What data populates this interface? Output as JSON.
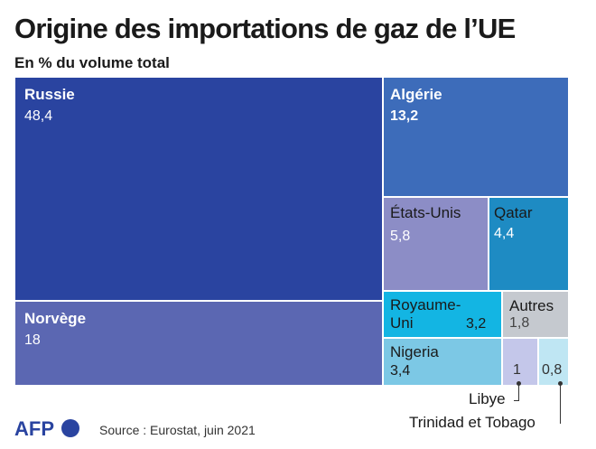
{
  "header": {
    "title": "Origine des importations de gaz de l’UE",
    "subtitle": "En % du volume total"
  },
  "chart_data": {
    "type": "treemap",
    "title": "Origine des importations de gaz de l’UE",
    "subtitle": "En % du volume total",
    "unit": "%",
    "items": [
      {
        "name": "Russie",
        "value": 48.4,
        "label": "48,4",
        "color": "#2a44a0"
      },
      {
        "name": "Norvège",
        "value": 18,
        "label": "18",
        "color": "#5b67b2"
      },
      {
        "name": "Algérie",
        "value": 13.2,
        "label": "13,2",
        "color": "#3d6cba"
      },
      {
        "name": "États-Unis",
        "value": 5.8,
        "label": "5,8",
        "color": "#8c8dc6"
      },
      {
        "name": "Qatar",
        "value": 4.4,
        "label": "4,4",
        "color": "#1e8bc3"
      },
      {
        "name": "Nigeria",
        "value": 3.4,
        "label": "3,4",
        "color": "#7cc8e5"
      },
      {
        "name": "Royaume-Uni",
        "value": 3.2,
        "label": "3,2",
        "color": "#13b5e3"
      },
      {
        "name": "Autres",
        "value": 1.8,
        "label": "1,8",
        "color": "#c5c9cf"
      },
      {
        "name": "Libye",
        "value": 1,
        "label": "1",
        "color": "#c4c7ea"
      },
      {
        "name": "Trinidad et Tobago",
        "value": 0.8,
        "label": "0,8",
        "color": "#bfe6f3"
      }
    ],
    "labels": {
      "royaume_uni_line1": "Royaume-",
      "royaume_uni_line2": "Uni"
    }
  },
  "footer": {
    "logo_text": "AFP",
    "source": "Source : Eurostat, juin 2021"
  }
}
